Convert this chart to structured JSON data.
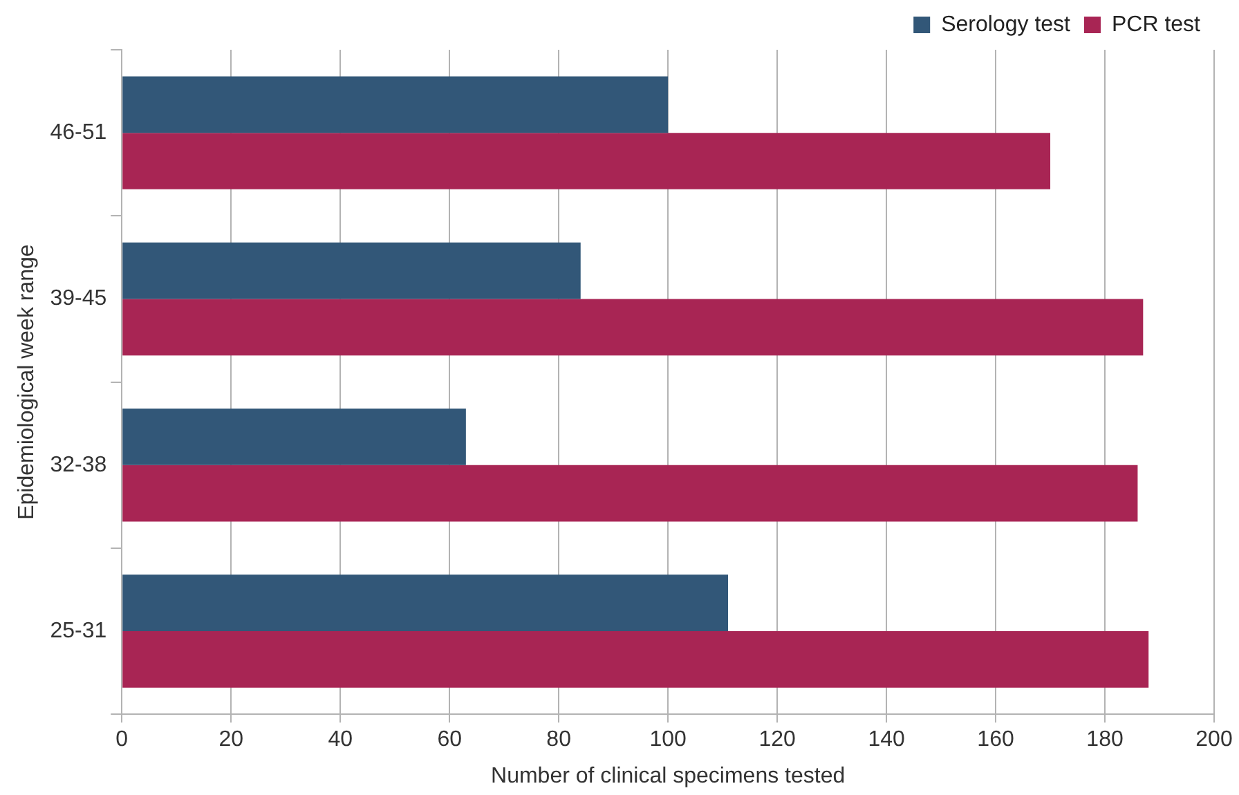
{
  "chart_data": {
    "type": "bar",
    "orientation": "horizontal",
    "xlabel": "Number of clinical specimens tested",
    "ylabel": "Epidemiological week range",
    "categories": [
      "46-51",
      "39-45",
      "32-38",
      "25-31"
    ],
    "series": [
      {
        "name": "Serology test",
        "color": "#325778",
        "values": [
          100,
          84,
          63,
          111
        ]
      },
      {
        "name": "PCR test",
        "color": "#a82554",
        "values": [
          170,
          187,
          186,
          188
        ]
      }
    ],
    "xlim": [
      0,
      200
    ],
    "xticks": [
      0,
      20,
      40,
      60,
      80,
      100,
      120,
      140,
      160,
      180,
      200
    ],
    "grid": "x",
    "legend": "top right"
  }
}
